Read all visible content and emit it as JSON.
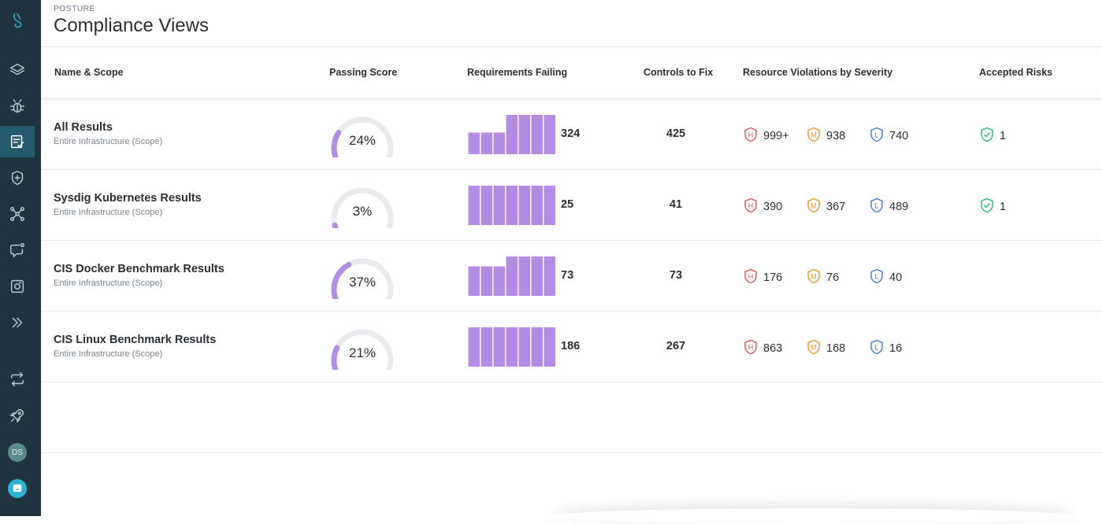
{
  "header": {
    "eyebrow": "POSTURE",
    "title": "Compliance Views"
  },
  "columns": {
    "name": "Name & Scope",
    "passing": "Passing Score",
    "failing": "Requirements Failing",
    "controls": "Controls to Fix",
    "violations": "Resource Violations by Severity",
    "accepted": "Accepted Risks"
  },
  "colors": {
    "bar": "#b48ce3",
    "high": "#e0534f",
    "medium": "#f0952c",
    "low": "#3d7ad6",
    "accepted": "#20b47a",
    "gauge_fill": "#b48ce3",
    "gauge_track": "#e8eaee"
  },
  "sidebar": {
    "icons": [
      "logo-icon",
      "layers-icon",
      "bug-icon",
      "compliance-icon",
      "shield-plus-icon",
      "network-icon",
      "chat-alert-icon",
      "camera-icon",
      "expand-icon",
      "sync-icon",
      "rocket-icon"
    ],
    "avatar": "DS"
  },
  "rows": [
    {
      "name": "All Results",
      "scope": "Entire Infrastructure (Scope)",
      "passing_pct": 24,
      "passing_label": "24%",
      "failing_bars": [
        0.55,
        0.55,
        0.55,
        1,
        1,
        1,
        1
      ],
      "failing": "324",
      "controls": "425",
      "high": "999+",
      "medium": "938",
      "low": "740",
      "accepted": "1"
    },
    {
      "name": "Sysdig Kubernetes Results",
      "scope": "Entire Infrastructure (Scope)",
      "passing_pct": 3,
      "passing_label": "3%",
      "failing_bars": [
        1,
        1,
        1,
        1,
        1,
        1,
        1
      ],
      "failing": "25",
      "controls": "41",
      "high": "390",
      "medium": "367",
      "low": "489",
      "accepted": "1"
    },
    {
      "name": "CIS Docker Benchmark Results",
      "scope": "Entire Infrastructure (Scope)",
      "passing_pct": 37,
      "passing_label": "37%",
      "failing_bars": [
        0.75,
        0.75,
        0.75,
        1,
        1,
        1,
        1
      ],
      "failing": "73",
      "controls": "73",
      "high": "176",
      "medium": "76",
      "low": "40",
      "accepted": ""
    },
    {
      "name": "CIS Linux Benchmark Results",
      "scope": "Entire Infrastructure (Scope)",
      "passing_pct": 21,
      "passing_label": "21%",
      "failing_bars": [
        1,
        1,
        1,
        1,
        1,
        1,
        1
      ],
      "failing": "186",
      "controls": "267",
      "high": "863",
      "medium": "168",
      "low": "16",
      "accepted": ""
    }
  ],
  "severity_letters": {
    "high": "H",
    "medium": "M",
    "low": "L"
  }
}
